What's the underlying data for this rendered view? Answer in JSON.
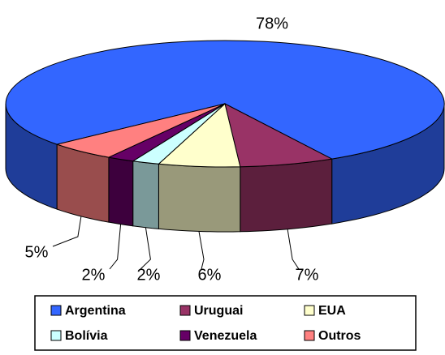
{
  "chart_data": {
    "type": "pie",
    "categories": [
      "Argentina",
      "Uruguai",
      "EUA",
      "Bolívia",
      "Venezuela",
      "Outros"
    ],
    "values": [
      78,
      7,
      6,
      2,
      2,
      5
    ],
    "value_labels": [
      "78%",
      "7%",
      "6%",
      "2%",
      "2%",
      "5%"
    ],
    "colors": [
      "#3366ff",
      "#993366",
      "#ffffcc",
      "#ccffff",
      "#660066",
      "#ff8080"
    ]
  }
}
